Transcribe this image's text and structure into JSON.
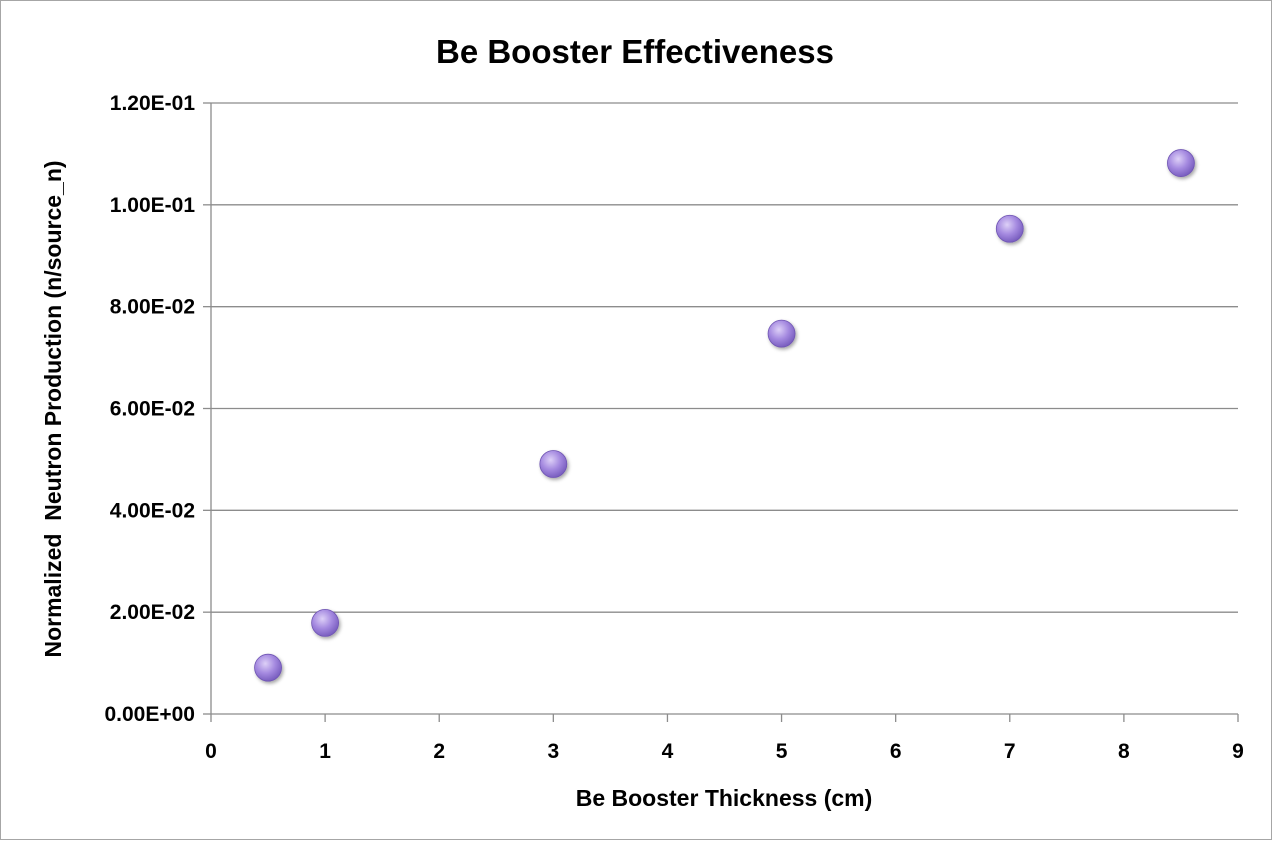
{
  "chart_data": {
    "type": "scatter",
    "title": "Be Booster Effectiveness",
    "xlabel": "Be Booster Thickness (cm)",
    "ylabel": "Normalized  Neutron Production (n/source_n)",
    "xlim": [
      0,
      9
    ],
    "ylim": [
      0,
      0.12
    ],
    "x_ticks": [
      "0",
      "1",
      "2",
      "3",
      "4",
      "5",
      "6",
      "7",
      "8",
      "9"
    ],
    "y_ticks": [
      "0.00E+00",
      "2.00E-02",
      "4.00E-02",
      "6.00E-02",
      "8.00E-02",
      "1.00E-01",
      "1.20E-01"
    ],
    "grid": "horizontal",
    "legend": "none",
    "marker_color": "#9b7fd6",
    "series": [
      {
        "x": [
          0.5,
          1,
          3,
          5,
          7,
          8.5
        ],
        "y": [
          0.0091,
          0.0179,
          0.0491,
          0.0747,
          0.0953,
          0.1082
        ]
      }
    ]
  }
}
